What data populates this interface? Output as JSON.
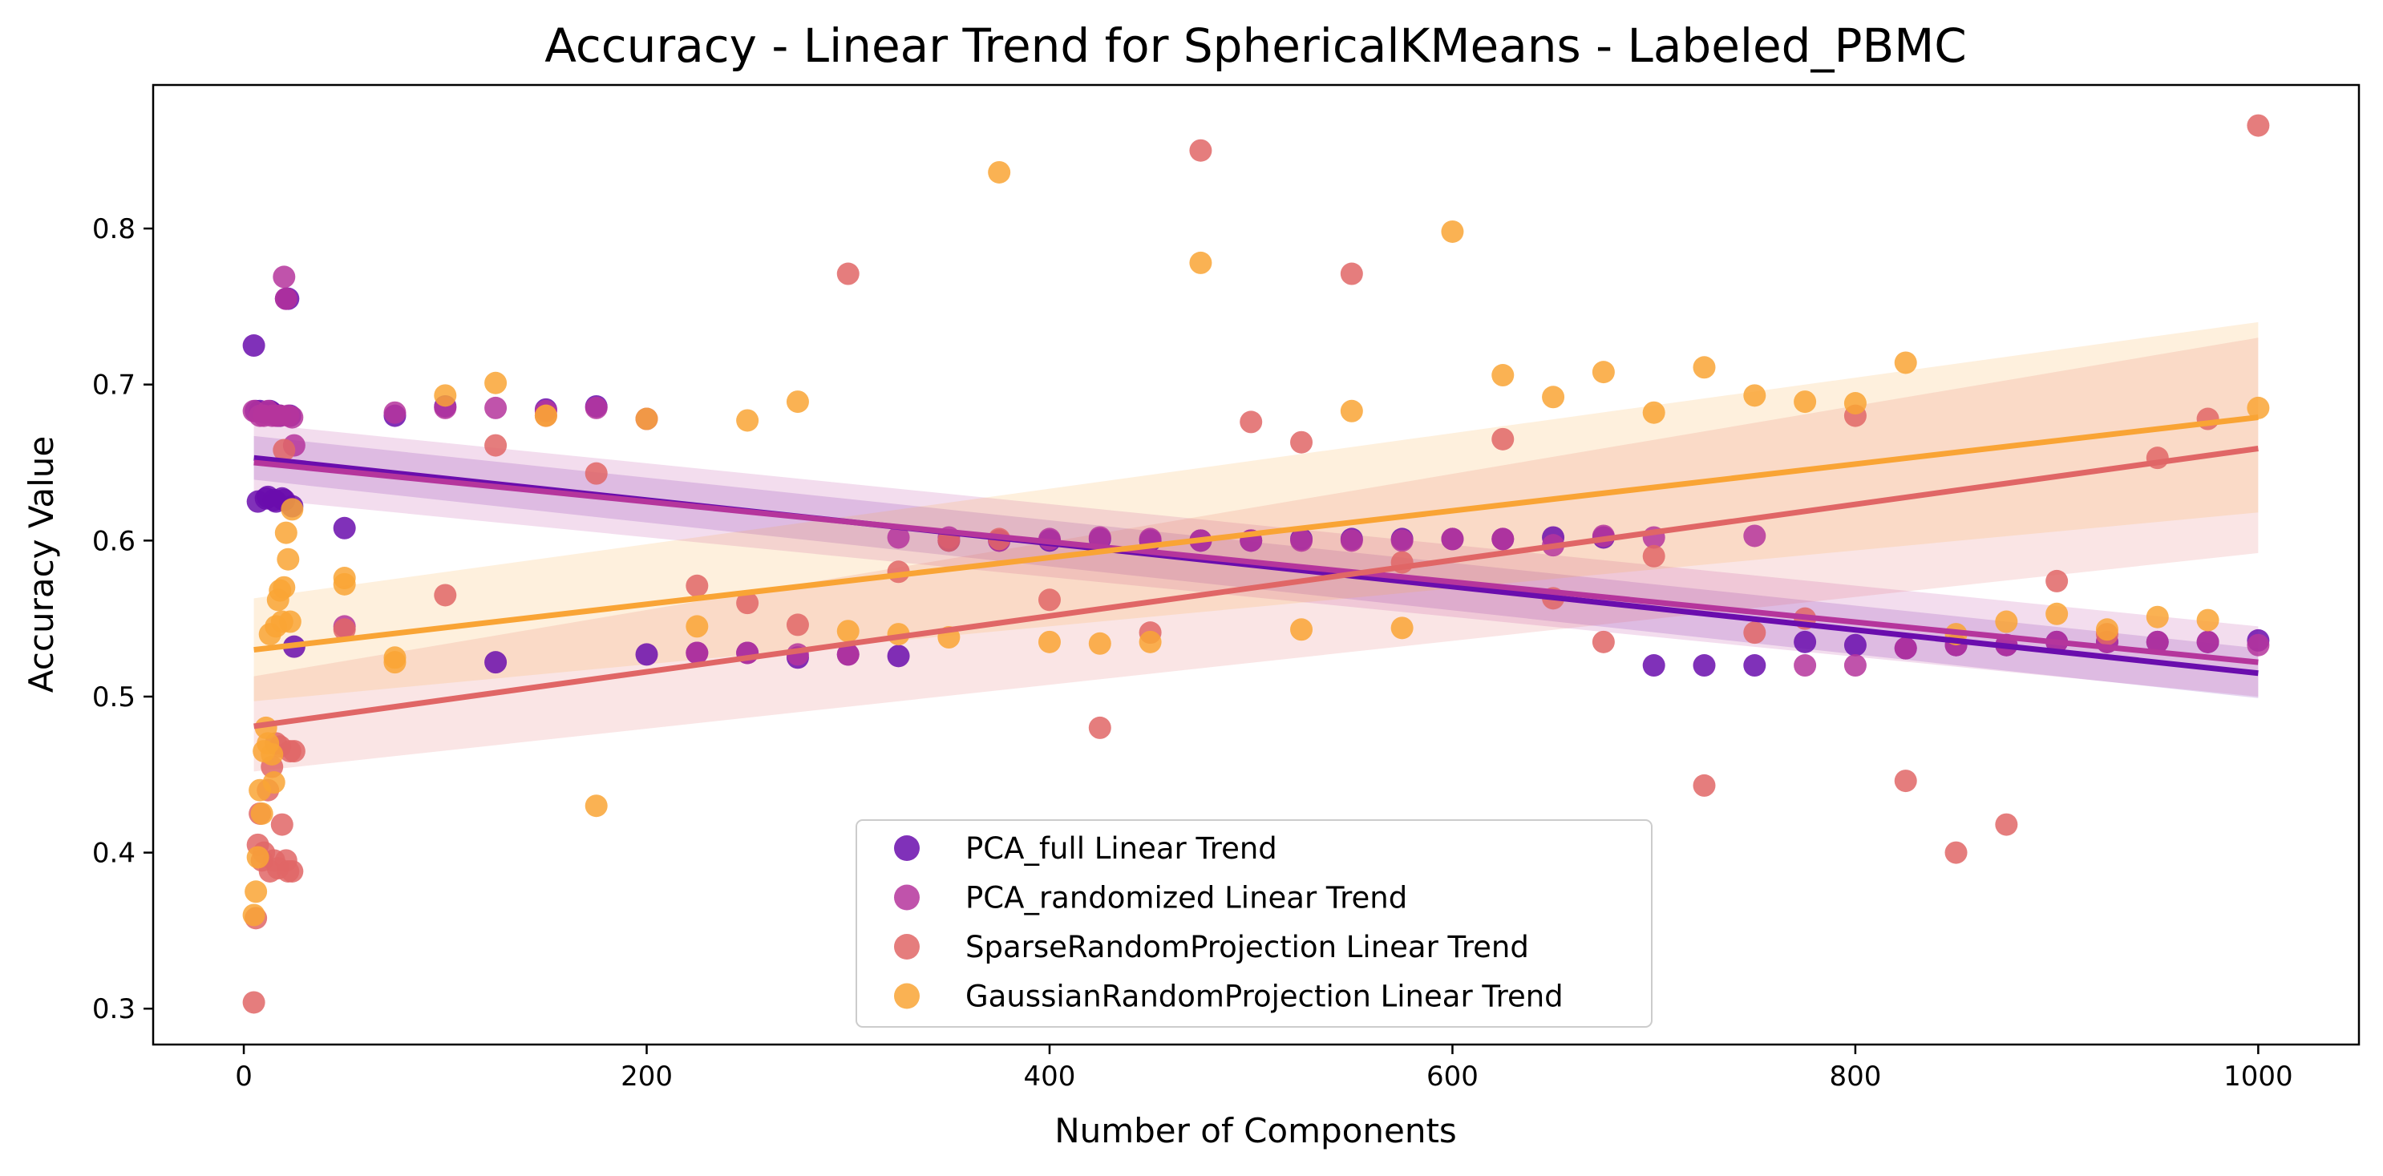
{
  "chart_data": {
    "type": "scatter",
    "title": "Accuracy - Linear Trend for SphericalKMeans - Labeled_PBMC",
    "xlabel": "Number of Components",
    "ylabel": "Accuracy Value",
    "xlim": [
      -45,
      1050
    ],
    "ylim": [
      0.277,
      0.892
    ],
    "xticks": [
      0,
      200,
      400,
      600,
      800,
      1000
    ],
    "yticks": [
      0.3,
      0.4,
      0.5,
      0.6,
      0.7,
      0.8
    ],
    "grid": false,
    "legend_position": "lower center",
    "series": [
      {
        "name": "PCA_full Linear Trend",
        "color": "#6a0dad",
        "trend": {
          "x": [
            5,
            1000
          ],
          "y": [
            0.653,
            0.515
          ]
        },
        "band": {
          "upper": [
            0.667,
            0.531
          ],
          "lower": [
            0.639,
            0.499
          ]
        },
        "points": [
          [
            5,
            0.725
          ],
          [
            6,
            0.683
          ],
          [
            7,
            0.625
          ],
          [
            8,
            0.683
          ],
          [
            10,
            0.682
          ],
          [
            11,
            0.627
          ],
          [
            12,
            0.628
          ],
          [
            13,
            0.683
          ],
          [
            14,
            0.682
          ],
          [
            15,
            0.626
          ],
          [
            16,
            0.625
          ],
          [
            17,
            0.68
          ],
          [
            18,
            0.68
          ],
          [
            19,
            0.627
          ],
          [
            20,
            0.626
          ],
          [
            21,
            0.755
          ],
          [
            22,
            0.755
          ],
          [
            23,
            0.68
          ],
          [
            24,
            0.622
          ],
          [
            25,
            0.532
          ],
          [
            50,
            0.608
          ],
          [
            75,
            0.68
          ],
          [
            100,
            0.686
          ],
          [
            125,
            0.522
          ],
          [
            150,
            0.684
          ],
          [
            175,
            0.686
          ],
          [
            200,
            0.527
          ],
          [
            225,
            0.528
          ],
          [
            250,
            0.528
          ],
          [
            275,
            0.525
          ],
          [
            300,
            0.527
          ],
          [
            325,
            0.526
          ],
          [
            350,
            0.6
          ],
          [
            375,
            0.6
          ],
          [
            400,
            0.6
          ],
          [
            425,
            0.601
          ],
          [
            450,
            0.6
          ],
          [
            475,
            0.6
          ],
          [
            500,
            0.6
          ],
          [
            525,
            0.601
          ],
          [
            550,
            0.601
          ],
          [
            575,
            0.601
          ],
          [
            600,
            0.601
          ],
          [
            625,
            0.601
          ],
          [
            650,
            0.602
          ],
          [
            675,
            0.602
          ],
          [
            700,
            0.52
          ],
          [
            725,
            0.52
          ],
          [
            750,
            0.52
          ],
          [
            775,
            0.535
          ],
          [
            800,
            0.533
          ],
          [
            825,
            0.531
          ],
          [
            850,
            0.533
          ],
          [
            875,
            0.533
          ],
          [
            900,
            0.535
          ],
          [
            925,
            0.535
          ],
          [
            950,
            0.535
          ],
          [
            975,
            0.535
          ],
          [
            1000,
            0.536
          ]
        ]
      },
      {
        "name": "PCA_randomized Linear Trend",
        "color": "#b5359c",
        "trend": {
          "x": [
            5,
            1000
          ],
          "y": [
            0.65,
            0.522
          ]
        },
        "band": {
          "upper": [
            0.675,
            0.545
          ],
          "lower": [
            0.627,
            0.5
          ]
        },
        "points": [
          [
            5,
            0.683
          ],
          [
            8,
            0.68
          ],
          [
            10,
            0.68
          ],
          [
            12,
            0.683
          ],
          [
            14,
            0.68
          ],
          [
            16,
            0.68
          ],
          [
            18,
            0.68
          ],
          [
            20,
            0.769
          ],
          [
            21,
            0.755
          ],
          [
            22,
            0.68
          ],
          [
            24,
            0.679
          ],
          [
            25,
            0.661
          ],
          [
            50,
            0.545
          ],
          [
            75,
            0.682
          ],
          [
            100,
            0.685
          ],
          [
            125,
            0.685
          ],
          [
            150,
            0.683
          ],
          [
            175,
            0.685
          ],
          [
            200,
            0.678
          ],
          [
            225,
            0.528
          ],
          [
            250,
            0.528
          ],
          [
            275,
            0.527
          ],
          [
            300,
            0.527
          ],
          [
            325,
            0.602
          ],
          [
            350,
            0.602
          ],
          [
            375,
            0.6
          ],
          [
            400,
            0.601
          ],
          [
            425,
            0.602
          ],
          [
            450,
            0.601
          ],
          [
            475,
            0.6
          ],
          [
            500,
            0.6
          ],
          [
            525,
            0.6
          ],
          [
            550,
            0.6
          ],
          [
            575,
            0.6
          ],
          [
            600,
            0.601
          ],
          [
            625,
            0.601
          ],
          [
            650,
            0.597
          ],
          [
            675,
            0.603
          ],
          [
            700,
            0.602
          ],
          [
            750,
            0.603
          ],
          [
            775,
            0.52
          ],
          [
            800,
            0.52
          ],
          [
            825,
            0.531
          ],
          [
            850,
            0.533
          ],
          [
            875,
            0.533
          ],
          [
            900,
            0.535
          ],
          [
            925,
            0.535
          ],
          [
            950,
            0.535
          ],
          [
            975,
            0.535
          ],
          [
            1000,
            0.533
          ]
        ]
      },
      {
        "name": "SparseRandomProjection Linear Trend",
        "color": "#e06666",
        "trend": {
          "x": [
            5,
            1000
          ],
          "y": [
            0.481,
            0.659
          ]
        },
        "band": {
          "upper": [
            0.513,
            0.73
          ],
          "lower": [
            0.452,
            0.592
          ]
        },
        "points": [
          [
            5,
            0.304
          ],
          [
            6,
            0.358
          ],
          [
            7,
            0.405
          ],
          [
            8,
            0.425
          ],
          [
            9,
            0.395
          ],
          [
            10,
            0.4
          ],
          [
            12,
            0.44
          ],
          [
            13,
            0.388
          ],
          [
            14,
            0.455
          ],
          [
            15,
            0.395
          ],
          [
            16,
            0.47
          ],
          [
            17,
            0.39
          ],
          [
            18,
            0.468
          ],
          [
            19,
            0.418
          ],
          [
            20,
            0.658
          ],
          [
            21,
            0.395
          ],
          [
            22,
            0.388
          ],
          [
            23,
            0.465
          ],
          [
            24,
            0.388
          ],
          [
            25,
            0.465
          ],
          [
            50,
            0.543
          ],
          [
            100,
            0.565
          ],
          [
            125,
            0.661
          ],
          [
            150,
            0.68
          ],
          [
            175,
            0.643
          ],
          [
            225,
            0.571
          ],
          [
            250,
            0.56
          ],
          [
            275,
            0.546
          ],
          [
            300,
            0.771
          ],
          [
            325,
            0.58
          ],
          [
            350,
            0.6
          ],
          [
            375,
            0.601
          ],
          [
            400,
            0.562
          ],
          [
            425,
            0.48
          ],
          [
            450,
            0.541
          ],
          [
            475,
            0.85
          ],
          [
            500,
            0.676
          ],
          [
            525,
            0.663
          ],
          [
            550,
            0.771
          ],
          [
            575,
            0.586
          ],
          [
            650,
            0.563
          ],
          [
            625,
            0.665
          ],
          [
            675,
            0.535
          ],
          [
            700,
            0.59
          ],
          [
            725,
            0.443
          ],
          [
            750,
            0.541
          ],
          [
            775,
            0.55
          ],
          [
            800,
            0.68
          ],
          [
            825,
            0.446
          ],
          [
            850,
            0.4
          ],
          [
            875,
            0.418
          ],
          [
            900,
            0.574
          ],
          [
            925,
            0.54
          ],
          [
            950,
            0.653
          ],
          [
            975,
            0.678
          ],
          [
            1000,
            0.866
          ]
        ]
      },
      {
        "name": "GaussianRandomProjection Linear Trend",
        "color": "#f9a435",
        "trend": {
          "x": [
            5,
            1000
          ],
          "y": [
            0.53,
            0.679
          ]
        },
        "band": {
          "upper": [
            0.563,
            0.74
          ],
          "lower": [
            0.497,
            0.618
          ]
        },
        "points": [
          [
            5,
            0.36
          ],
          [
            6,
            0.375
          ],
          [
            7,
            0.397
          ],
          [
            8,
            0.44
          ],
          [
            9,
            0.425
          ],
          [
            10,
            0.465
          ],
          [
            11,
            0.48
          ],
          [
            12,
            0.47
          ],
          [
            13,
            0.54
          ],
          [
            14,
            0.463
          ],
          [
            15,
            0.445
          ],
          [
            16,
            0.545
          ],
          [
            17,
            0.562
          ],
          [
            18,
            0.568
          ],
          [
            19,
            0.548
          ],
          [
            20,
            0.57
          ],
          [
            21,
            0.605
          ],
          [
            22,
            0.588
          ],
          [
            23,
            0.548
          ],
          [
            24,
            0.62
          ],
          [
            50,
            0.576
          ],
          [
            50,
            0.572
          ],
          [
            75,
            0.525
          ],
          [
            75,
            0.522
          ],
          [
            100,
            0.693
          ],
          [
            125,
            0.701
          ],
          [
            150,
            0.68
          ],
          [
            175,
            0.43
          ],
          [
            200,
            0.678
          ],
          [
            225,
            0.545
          ],
          [
            250,
            0.677
          ],
          [
            275,
            0.689
          ],
          [
            300,
            0.542
          ],
          [
            325,
            0.54
          ],
          [
            350,
            0.538
          ],
          [
            375,
            0.836
          ],
          [
            400,
            0.535
          ],
          [
            425,
            0.534
          ],
          [
            450,
            0.535
          ],
          [
            475,
            0.778
          ],
          [
            550,
            0.683
          ],
          [
            525,
            0.543
          ],
          [
            575,
            0.544
          ],
          [
            600,
            0.798
          ],
          [
            625,
            0.706
          ],
          [
            650,
            0.692
          ],
          [
            675,
            0.708
          ],
          [
            700,
            0.682
          ],
          [
            725,
            0.711
          ],
          [
            750,
            0.693
          ],
          [
            775,
            0.689
          ],
          [
            800,
            0.688
          ],
          [
            825,
            0.714
          ],
          [
            850,
            0.54
          ],
          [
            875,
            0.548
          ],
          [
            900,
            0.553
          ],
          [
            925,
            0.543
          ],
          [
            950,
            0.551
          ],
          [
            975,
            0.549
          ],
          [
            1000,
            0.685
          ]
        ]
      }
    ]
  }
}
